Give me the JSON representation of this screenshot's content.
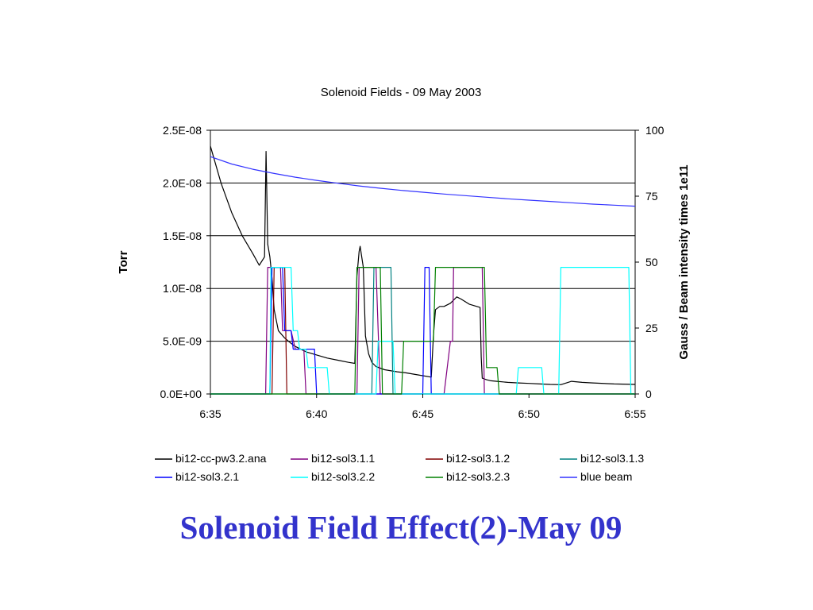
{
  "slide": {
    "title": "Solenoid Field Effect(2)-May 09"
  },
  "colors": {
    "slide_title": "#3333cc",
    "grid": "#000000",
    "bi12-cc-pw3.2.ana": "#000000",
    "bi12-sol3.1.1": "#800080",
    "bi12-sol3.1.2": "#800000",
    "bi12-sol3.1.3": "#008080",
    "bi12-sol3.2.1": "#0000ff",
    "bi12-sol3.2.2": "#00ffff",
    "bi12-sol3.2.3": "#008000",
    "blue beam": "#3333ff"
  },
  "chart_data": {
    "type": "line",
    "title": "Solenoid Fields - 09 May 2003",
    "xlabel": "",
    "ylabel": "Torr",
    "y2label": "Gauss / Beam intensity times 1e11",
    "x_unit": "minutes after 6:35",
    "xlim": [
      0,
      20
    ],
    "ylim": [
      0,
      2.5e-08
    ],
    "y2lim": [
      0,
      100
    ],
    "x_ticks": [
      0,
      5,
      10,
      15,
      20
    ],
    "x_tick_labels": [
      "6:35",
      "6:40",
      "6:45",
      "6:50",
      "6:55"
    ],
    "y_ticks": [
      0,
      5e-09,
      1e-08,
      1.5e-08,
      2e-08,
      2.5e-08
    ],
    "y_tick_labels": [
      "0.0E+00",
      "5.0E-09",
      "1.0E-08",
      "1.5E-08",
      "2.0E-08",
      "2.5E-08"
    ],
    "y2_ticks": [
      0,
      25,
      50,
      75,
      100
    ],
    "y2_tick_labels": [
      "0",
      "25",
      "50",
      "75",
      "100"
    ],
    "grid": "horizontal",
    "legend_position": "bottom",
    "series": [
      {
        "name": "bi12-cc-pw3.2.ana",
        "axis": "left",
        "x": [
          0,
          0.5,
          1.0,
          1.5,
          2.0,
          2.3,
          2.55,
          2.62,
          2.7,
          2.8,
          2.9,
          3.0,
          3.2,
          3.5,
          3.8,
          4.0,
          4.5,
          5.0,
          5.5,
          6.0,
          6.5,
          6.8,
          6.9,
          7.0,
          7.05,
          7.2,
          7.3,
          7.45,
          7.6,
          7.8,
          8.2,
          8.8,
          9.2,
          9.8,
          10.4,
          10.5,
          10.6,
          10.8,
          11.0,
          11.3,
          11.6,
          11.8,
          12.2,
          12.7,
          12.75,
          12.8,
          13.0,
          13.2,
          13.5,
          14.0,
          14.5,
          15.0,
          15.5,
          16.0,
          16.5,
          17.0,
          17.5,
          18.0,
          19.0,
          20.0
        ],
        "values": [
          2.35e-08,
          2e-08,
          1.72e-08,
          1.5e-08,
          1.33e-08,
          1.22e-08,
          1.3e-08,
          2.3e-08,
          1.42e-08,
          1.3e-08,
          1.1e-08,
          8e-09,
          6e-09,
          5.3e-09,
          4.8e-09,
          4.5e-09,
          4e-09,
          3.7e-09,
          3.4e-09,
          3.2e-09,
          3e-09,
          2.9e-09,
          1.12e-08,
          1.35e-08,
          1.4e-08,
          1.2e-08,
          5.5e-09,
          3.8e-09,
          3e-09,
          2.6e-09,
          2.3e-09,
          2.1e-09,
          2e-09,
          1.8e-09,
          1.6e-09,
          5.5e-09,
          8e-09,
          8.3e-09,
          8.3e-09,
          8.6e-09,
          9.2e-09,
          9e-09,
          8.5e-09,
          8.2e-09,
          3.5e-09,
          1.5e-09,
          1.35e-09,
          1.25e-09,
          1.2e-09,
          1.1e-09,
          1.05e-09,
          1e-09,
          9.5e-10,
          9e-10,
          8.8e-10,
          1.2e-09,
          1.1e-09,
          1.05e-09,
          9.5e-10,
          9e-10
        ]
      },
      {
        "name": "bi12-sol3.1.1",
        "axis": "right",
        "x": [
          0,
          2.6,
          2.7,
          3.0,
          3.3,
          3.4,
          3.5,
          3.8,
          4.0,
          4.4,
          4.5,
          6.4,
          6.9,
          7.0,
          7.8,
          8.0,
          8.3,
          8.4,
          11.0,
          11.3,
          11.4,
          11.45,
          12.8,
          12.9,
          20.0
        ],
        "values": [
          0,
          0,
          48,
          48,
          48,
          24,
          24,
          24,
          17,
          17,
          0,
          0,
          0,
          48,
          48,
          0,
          0,
          0,
          0,
          20,
          20,
          48,
          48,
          0,
          0
        ]
      },
      {
        "name": "bi12-sol3.1.2",
        "axis": "right",
        "x": [
          0,
          2.9,
          3.0,
          3.5,
          3.6,
          3.7,
          3.8,
          20.0
        ],
        "values": [
          0,
          0,
          48,
          48,
          0,
          0,
          0,
          0
        ]
      },
      {
        "name": "bi12-sol3.1.3",
        "axis": "right",
        "x": [
          0,
          7.6,
          7.7,
          8.5,
          8.6,
          20.0
        ],
        "values": [
          0,
          0,
          48,
          48,
          0,
          0
        ]
      },
      {
        "name": "bi12-sol3.2.1",
        "axis": "right",
        "x": [
          0,
          2.8,
          2.9,
          3.4,
          3.5,
          3.8,
          3.9,
          4.3,
          4.4,
          4.9,
          5.0,
          10.0,
          10.1,
          10.3,
          10.4,
          20.0
        ],
        "values": [
          0,
          0,
          48,
          48,
          24,
          24,
          17,
          17,
          17,
          17,
          0,
          0,
          48,
          48,
          0,
          0
        ]
      },
      {
        "name": "bi12-sol3.2.2",
        "axis": "right",
        "x": [
          0,
          2.8,
          2.85,
          3.8,
          3.9,
          4.1,
          4.2,
          4.5,
          4.6,
          5.5,
          5.6,
          7.8,
          7.9,
          8.4,
          8.5,
          8.6,
          8.7,
          11.0,
          11.1,
          12.8,
          12.9,
          14.4,
          14.5,
          15.6,
          15.7,
          16.4,
          16.5,
          17.0,
          17.1,
          19.7,
          19.8,
          20.0
        ],
        "values": [
          0,
          0,
          48,
          48,
          24,
          24,
          17,
          17,
          10,
          10,
          0,
          0,
          20,
          20,
          20,
          20,
          0,
          0,
          0,
          0,
          0,
          0,
          10,
          10,
          0,
          0,
          48,
          48,
          48,
          48,
          0,
          0
        ]
      },
      {
        "name": "bi12-sol3.2.3",
        "axis": "right",
        "x": [
          0,
          6.8,
          6.9,
          8.0,
          8.1,
          9.0,
          9.1,
          10.5,
          10.6,
          12.9,
          13.0,
          13.5,
          13.6,
          20.0
        ],
        "values": [
          0,
          0,
          48,
          48,
          0,
          0,
          20,
          20,
          48,
          48,
          10,
          10,
          0,
          0
        ]
      },
      {
        "name": "blue beam",
        "axis": "right",
        "x": [
          0,
          1,
          2,
          3,
          4,
          5,
          6,
          7,
          8,
          9,
          10,
          11,
          12,
          13,
          14,
          15,
          16,
          17,
          18,
          19,
          20
        ],
        "values": [
          90,
          87.2,
          85.2,
          83.6,
          82.2,
          81.0,
          79.9,
          78.9,
          78.0,
          77.2,
          76.5,
          75.8,
          75.2,
          74.6,
          74.0,
          73.5,
          73.0,
          72.5,
          72.0,
          71.6,
          71.2
        ]
      }
    ],
    "legend": [
      "bi12-cc-pw3.2.ana",
      "bi12-sol3.1.1",
      "bi12-sol3.1.2",
      "bi12-sol3.1.3",
      "bi12-sol3.2.1",
      "bi12-sol3.2.2",
      "bi12-sol3.2.3",
      "blue beam"
    ]
  }
}
